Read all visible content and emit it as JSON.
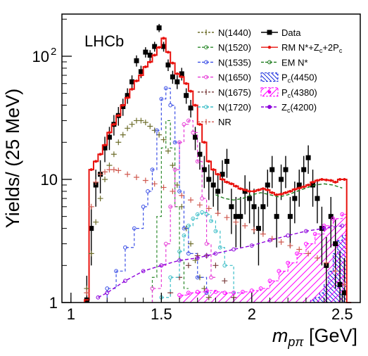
{
  "chart_data": {
    "type": "line",
    "label": "LHCb",
    "ylabel": "Yields/ (25 MeV)",
    "xlabel_main": "m",
    "xlabel_sub": "pπ",
    "xlabel_unit": " [GeV]",
    "xlim": [
      0.95,
      2.6
    ],
    "ylim": [
      1,
      220
    ],
    "yscale": "log",
    "grid": false,
    "legend_position": "top-right",
    "x_ticks": [
      {
        "value": 1,
        "label": "1"
      },
      {
        "value": 1.5,
        "label": "1.5"
      },
      {
        "value": 2,
        "label": "2"
      },
      {
        "value": 2.5,
        "label": "2.5"
      }
    ],
    "y_ticks": [
      {
        "value": 1,
        "label": "1"
      },
      {
        "value": 10,
        "label": "10"
      },
      {
        "value": 100,
        "label": "10",
        "sup": "2"
      }
    ],
    "series": [
      {
        "name": "Data",
        "color": "#000000",
        "style": "data",
        "x": [
          1.0875,
          1.1125,
          1.1375,
          1.1625,
          1.1875,
          1.2125,
          1.2375,
          1.2625,
          1.2875,
          1.3125,
          1.3375,
          1.3625,
          1.3875,
          1.4125,
          1.4375,
          1.4625,
          1.4875,
          1.5125,
          1.5375,
          1.5625,
          1.5875,
          1.6125,
          1.6375,
          1.6625,
          1.6875,
          1.7125,
          1.7375,
          1.7625,
          1.7875,
          1.8125,
          1.8375,
          1.8625,
          1.8875,
          1.9125,
          1.9375,
          1.9625,
          1.9875,
          2.0125,
          2.0375,
          2.0625,
          2.0875,
          2.1125,
          2.1375,
          2.1625,
          2.1875,
          2.2125,
          2.2375,
          2.2625,
          2.2875,
          2.3125,
          2.3375,
          2.3625,
          2.3875,
          2.4125,
          2.4375,
          2.4625,
          2.4875,
          2.5125
        ],
        "y": [
          1.05,
          4,
          9,
          11,
          18,
          22,
          28,
          33,
          39,
          48,
          62,
          92,
          75,
          108,
          102,
          120,
          170,
          120,
          85,
          68,
          62,
          72,
          48,
          38,
          22,
          16,
          12,
          10,
          9,
          8,
          11,
          14,
          6,
          5,
          5,
          8,
          7,
          6,
          4,
          6,
          9,
          12,
          5,
          10,
          12,
          5,
          7,
          9,
          12,
          15,
          9,
          7,
          4,
          2,
          5,
          3,
          1.4,
          1.2
        ],
        "err": [
          0.6,
          2,
          3,
          3.3,
          4.2,
          4.7,
          5.3,
          5.7,
          6.2,
          6.9,
          7.9,
          9.6,
          8.7,
          10.4,
          10.1,
          11,
          13,
          11,
          9.2,
          8.2,
          7.9,
          8.5,
          6.9,
          6.2,
          4.7,
          4,
          3.5,
          3.2,
          3,
          2.8,
          3.3,
          3.7,
          2.4,
          2.2,
          2.2,
          2.8,
          2.6,
          2.4,
          2,
          2.4,
          3,
          3.5,
          2.2,
          3.2,
          3.5,
          2.2,
          2.6,
          3,
          3.5,
          3.9,
          3,
          2.6,
          2,
          1.4,
          2.2,
          1.7,
          1.2,
          1.1
        ]
      },
      {
        "name": "RM N*+Z<sub>c</sub>+2P<sub>c</sub>",
        "color": "#e8120e",
        "style": "step",
        "x": [
          1.075,
          1.1,
          1.125,
          1.15,
          1.175,
          1.2,
          1.225,
          1.25,
          1.275,
          1.3,
          1.325,
          1.35,
          1.375,
          1.4,
          1.425,
          1.45,
          1.475,
          1.5,
          1.525,
          1.55,
          1.575,
          1.6,
          1.625,
          1.65,
          1.675,
          1.7,
          1.725,
          1.75,
          1.775,
          1.8,
          1.825,
          1.85,
          1.875,
          1.9,
          1.925,
          1.95,
          1.975,
          2.0,
          2.025,
          2.05,
          2.075,
          2.1,
          2.125,
          2.15,
          2.175,
          2.2,
          2.225,
          2.25,
          2.275,
          2.3,
          2.325,
          2.35,
          2.375,
          2.4,
          2.425,
          2.45,
          2.475,
          2.5,
          2.525
        ],
        "y": [
          1.05,
          12,
          14,
          16,
          19,
          24,
          28,
          33,
          40,
          46,
          54,
          63,
          70,
          82,
          90,
          102,
          118,
          140,
          108,
          88,
          72,
          68,
          60,
          52,
          40,
          28,
          20,
          14,
          12,
          11,
          10,
          9.5,
          9.2,
          8.8,
          8.4,
          8.2,
          8.0,
          8.0,
          8.2,
          8.4,
          8.2,
          7.8,
          7.5,
          7.6,
          7.8,
          8.0,
          8.3,
          8.5,
          8.7,
          9,
          9.5,
          9.8,
          10,
          9.9,
          9.8,
          9.5,
          10,
          10,
          1.0
        ]
      },
      {
        "name": "EM N*",
        "color": "#1c7a1c",
        "style": "dashed",
        "x": [
          1.8,
          1.85,
          1.9,
          1.95,
          2.0,
          2.05,
          2.1,
          2.15,
          2.2,
          2.25,
          2.3,
          2.35,
          2.4,
          2.45,
          2.5
        ],
        "y": [
          7.5,
          7,
          6.8,
          7,
          7.5,
          7.8,
          7.5,
          7.2,
          7.5,
          8,
          8.5,
          9,
          9.2,
          9.0,
          8.5
        ]
      },
      {
        "name": "N(1440)",
        "color": "#6e6e2c",
        "style": "cross",
        "x": [
          1.0875,
          1.1125,
          1.1375,
          1.1625,
          1.1875,
          1.2125,
          1.2375,
          1.2625,
          1.2875,
          1.3125,
          1.3375,
          1.3625,
          1.3875,
          1.4125,
          1.4375,
          1.4625,
          1.4875,
          1.5125,
          1.5375,
          1.5625,
          1.5875,
          1.6125,
          1.6375,
          1.6625,
          1.6875,
          1.7125,
          1.7375,
          1.7625
        ],
        "y": [
          1.3,
          2.5,
          4.5,
          7,
          10,
          13,
          16,
          20,
          23,
          26,
          28,
          30,
          30,
          29,
          27,
          25,
          23,
          21,
          17,
          13,
          9,
          6,
          4,
          3,
          2.2,
          1.6,
          1.3,
          1.1
        ]
      },
      {
        "name": "N(1520)",
        "color": "#2e8b2e",
        "style": "step-dashed",
        "x": [
          1.45,
          1.475,
          1.5,
          1.525,
          1.55,
          1.575,
          1.6,
          1.625
        ],
        "y": [
          1.6,
          5,
          18,
          30,
          18,
          6,
          2.2,
          1.3
        ]
      },
      {
        "name": "N(1535)",
        "color": "#3c50e6",
        "style": "step-dashed-marker",
        "x": [
          1.2,
          1.25,
          1.3,
          1.35,
          1.4,
          1.425,
          1.45,
          1.475,
          1.5,
          1.525,
          1.55,
          1.575,
          1.6,
          1.625,
          1.65,
          1.7,
          1.75
        ],
        "y": [
          1.3,
          1.8,
          2.8,
          4,
          6,
          8,
          12,
          25,
          45,
          55,
          40,
          20,
          8,
          4,
          2.5,
          1.6,
          1.2
        ]
      },
      {
        "name": "N(1650)",
        "color": "#e63cd6",
        "style": "step-dashed-marker",
        "x": [
          1.45,
          1.5,
          1.525,
          1.55,
          1.575,
          1.6,
          1.625,
          1.65,
          1.675,
          1.7,
          1.725,
          1.75,
          1.775
        ],
        "y": [
          1.3,
          2,
          3,
          6,
          12,
          20,
          28,
          30,
          24,
          14,
          7,
          3,
          1.6
        ]
      },
      {
        "name": "N(1675)",
        "color": "#7a3c3c",
        "style": "cross",
        "x": [
          1.55,
          1.6,
          1.65,
          1.7,
          1.75,
          1.8,
          1.85,
          1.9
        ],
        "y": [
          1.2,
          1.6,
          2.0,
          2.4,
          2.4,
          2.0,
          1.5,
          1.1
        ]
      },
      {
        "name": "N(1720)",
        "color": "#3cbec8",
        "style": "step-dashed-marker",
        "x": [
          1.5,
          1.55,
          1.6,
          1.625,
          1.65,
          1.675,
          1.7,
          1.725,
          1.75,
          1.775,
          1.8,
          1.825,
          1.85,
          1.9
        ],
        "y": [
          1.1,
          1.6,
          2.6,
          3.5,
          4.2,
          4.8,
          5.2,
          5.4,
          5.2,
          4.6,
          3.8,
          2.8,
          2.0,
          1.2
        ]
      },
      {
        "name": "NR",
        "color": "#d05a50",
        "style": "cross",
        "x": [
          1.0875,
          1.1125,
          1.1375,
          1.1625,
          1.1875,
          1.2125,
          1.2375,
          1.2625,
          1.3125,
          1.3625,
          1.4125,
          1.4625,
          1.5125,
          1.5625,
          1.6125,
          1.6625,
          1.7125,
          1.7625,
          1.8125,
          1.8625,
          1.9125,
          1.9625,
          2.0125,
          2.0625,
          2.1125,
          2.1625,
          2.2125,
          2.2625,
          2.3125,
          2.3625,
          2.4125,
          2.4625,
          2.5125
        ],
        "y": [
          1.2,
          6,
          9.5,
          11,
          11.5,
          12,
          12,
          11.8,
          11,
          10.4,
          9.8,
          9.2,
          8.6,
          8,
          7.4,
          6.8,
          6.2,
          5.8,
          5.3,
          4.9,
          4.5,
          4.2,
          3.9,
          3.6,
          3.3,
          3.1,
          2.9,
          2.7,
          2.5,
          2.3,
          2.1,
          1.8,
          1.4
        ]
      },
      {
        "name": "P<sub>c</sub>(4450)",
        "color": "#1428dc",
        "style": "hatched",
        "x": [
          2.3,
          2.325,
          2.35,
          2.375,
          2.4,
          2.425,
          2.45,
          2.475,
          2.5,
          2.525
        ],
        "y": [
          1.0,
          1.05,
          1.1,
          1.2,
          1.4,
          1.8,
          2.5,
          3.2,
          3.5,
          1.0
        ]
      },
      {
        "name": "P<sub>c</sub>(4380)",
        "color": "#ff00ff",
        "style": "hatched-marker",
        "x": [
          1.6,
          1.65,
          1.7,
          1.75,
          1.8,
          1.85,
          1.9,
          1.95,
          2.0,
          2.05,
          2.1,
          2.15,
          2.2,
          2.25,
          2.3,
          2.35,
          2.4,
          2.45,
          2.5
        ],
        "y": [
          1.15,
          1.2,
          1.22,
          1.25,
          1.22,
          1.2,
          1.2,
          1.22,
          1.25,
          1.3,
          1.5,
          1.8,
          2.1,
          2.5,
          3.0,
          3.6,
          4.2,
          4.8,
          5.2
        ]
      },
      {
        "name": "Z<sub>c</sub>(4200)",
        "color": "#8c00dc",
        "style": "dashed-marker",
        "x": [
          1.15,
          1.2,
          1.3,
          1.4,
          1.5,
          1.6,
          1.7,
          1.75,
          1.8,
          1.9,
          2.0,
          2.1,
          2.2,
          2.3,
          2.4,
          2.5
        ],
        "y": [
          1.1,
          1.2,
          1.5,
          1.8,
          2.0,
          2.2,
          2.3,
          2.4,
          2.5,
          2.7,
          2.9,
          3.2,
          3.5,
          3.8,
          4.0,
          4.2
        ]
      }
    ]
  }
}
